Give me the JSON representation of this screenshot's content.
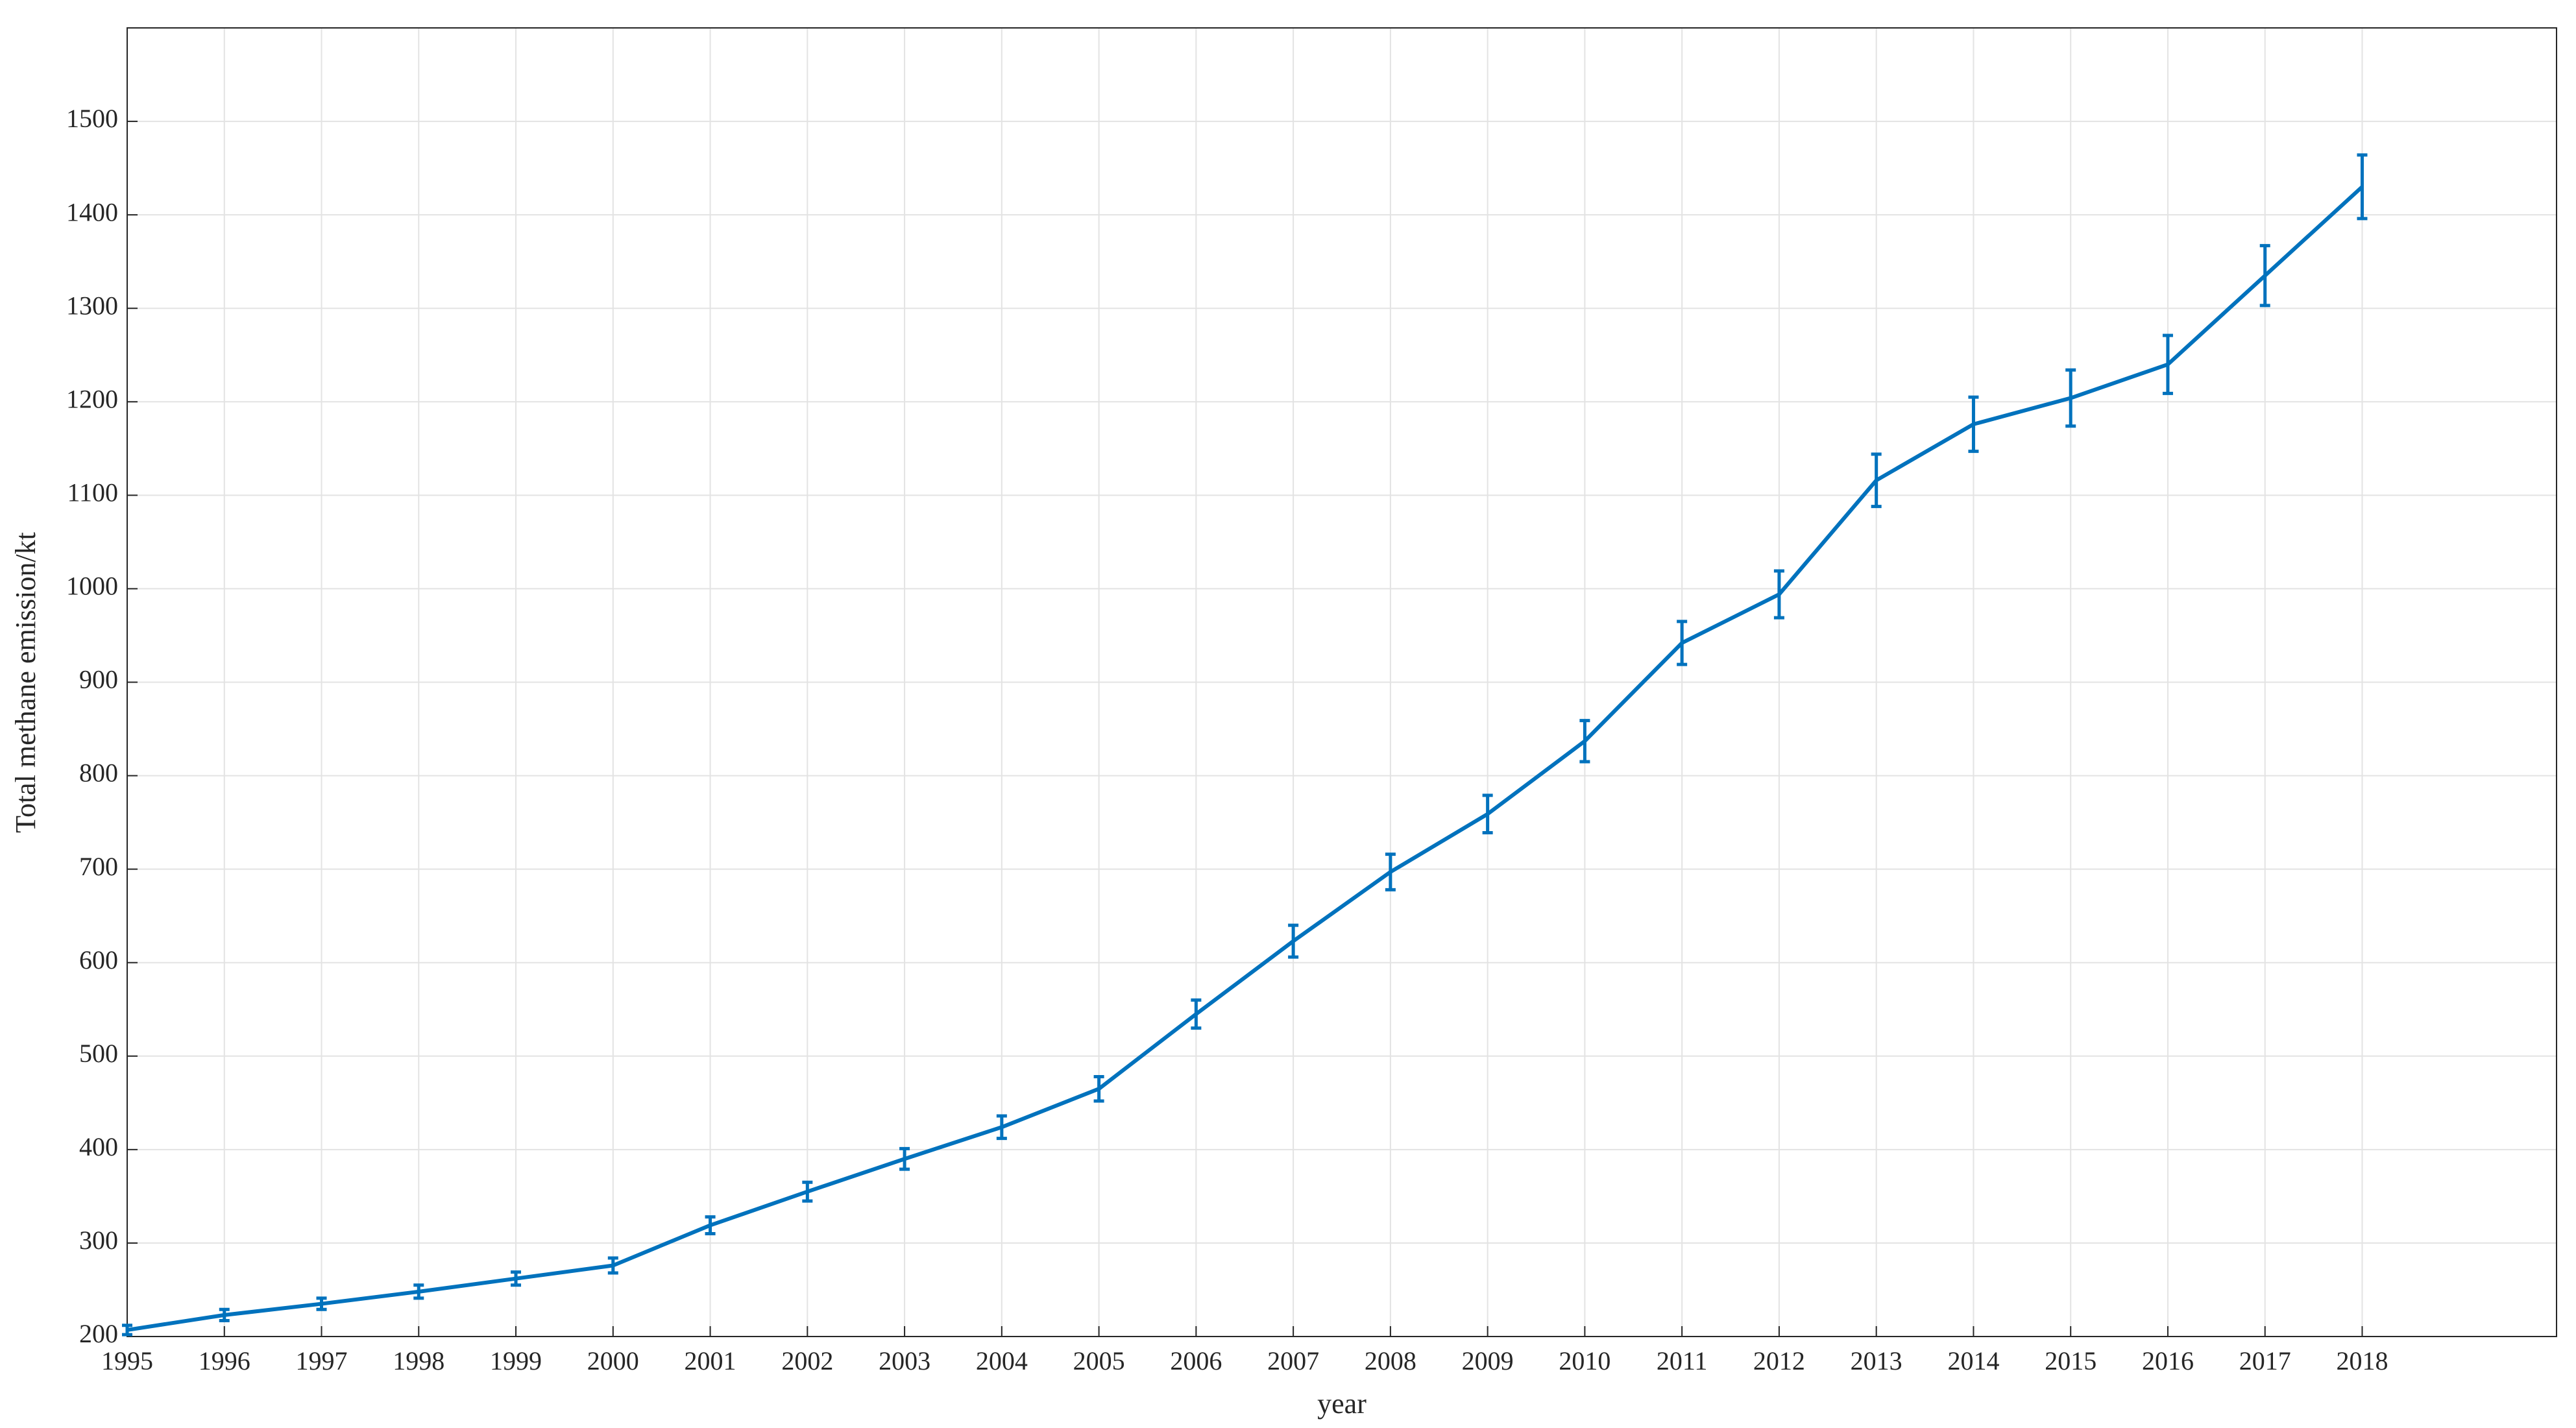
{
  "chart_data": {
    "type": "line",
    "x": [
      1995,
      1996,
      1997,
      1998,
      1999,
      2000,
      2001,
      2002,
      2003,
      2004,
      2005,
      2006,
      2007,
      2008,
      2009,
      2010,
      2011,
      2012,
      2013,
      2014,
      2015,
      2016,
      2017,
      2018
    ],
    "series": [
      {
        "color": "#0072bd",
        "values": [
          207,
          223,
          235,
          248,
          262,
          276,
          319,
          355,
          390,
          424,
          465,
          545,
          623,
          697,
          759,
          837,
          942,
          994,
          1116,
          1176,
          1204,
          1240,
          1335,
          1430
        ],
        "errors": [
          5,
          6,
          6,
          7,
          7,
          8,
          9,
          10,
          11,
          12,
          13,
          15,
          17,
          19,
          20,
          22,
          23,
          25,
          28,
          29,
          30,
          31,
          32,
          34
        ]
      }
    ],
    "x_label": "year",
    "y_label": "Total methane emission/kt",
    "xlim": [
      1995,
      2020
    ],
    "ylim": [
      200,
      1600
    ],
    "xticks": [
      1995,
      1996,
      1997,
      1998,
      1999,
      2000,
      2001,
      2002,
      2003,
      2004,
      2005,
      2006,
      2007,
      2008,
      2009,
      2010,
      2011,
      2012,
      2013,
      2014,
      2015,
      2016,
      2017,
      2018
    ],
    "yticks": [
      200,
      300,
      400,
      500,
      600,
      700,
      800,
      900,
      1000,
      1100,
      1200,
      1300,
      1400,
      1500
    ],
    "grid": true
  }
}
